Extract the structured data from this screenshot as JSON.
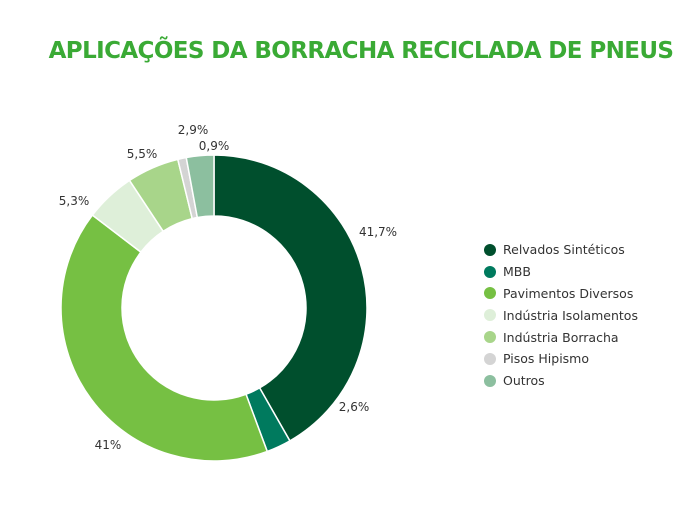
{
  "chart_data": {
    "type": "pie",
    "title": "APLICAÇÕES DA BORRACHA RECICLADA DE PNEUS",
    "donut": true,
    "legend_position": "right",
    "slices": [
      {
        "name": "Relvados Sintéticos",
        "value": 41.7,
        "label": "41,7%",
        "color": "#004f2d"
      },
      {
        "name": "MBB",
        "value": 2.6,
        "label": "2,6%",
        "color": "#007a5e"
      },
      {
        "name": "Pavimentos Diversos",
        "value": 41,
        "label": "41%",
        "color": "#76c043"
      },
      {
        "name": "Indústria Isolamentos",
        "value": 5.3,
        "label": "5,3%",
        "color": "#deefd9"
      },
      {
        "name": "Indústria Borracha",
        "value": 5.5,
        "label": "5,5%",
        "color": "#a8d58a"
      },
      {
        "name": "Pisos Hipismo",
        "value": 0.9,
        "label": "0,9%",
        "color": "#d4d4d4"
      },
      {
        "name": "Outros",
        "value": 2.9,
        "label": "2,9%",
        "color": "#8cbf9f"
      }
    ]
  }
}
